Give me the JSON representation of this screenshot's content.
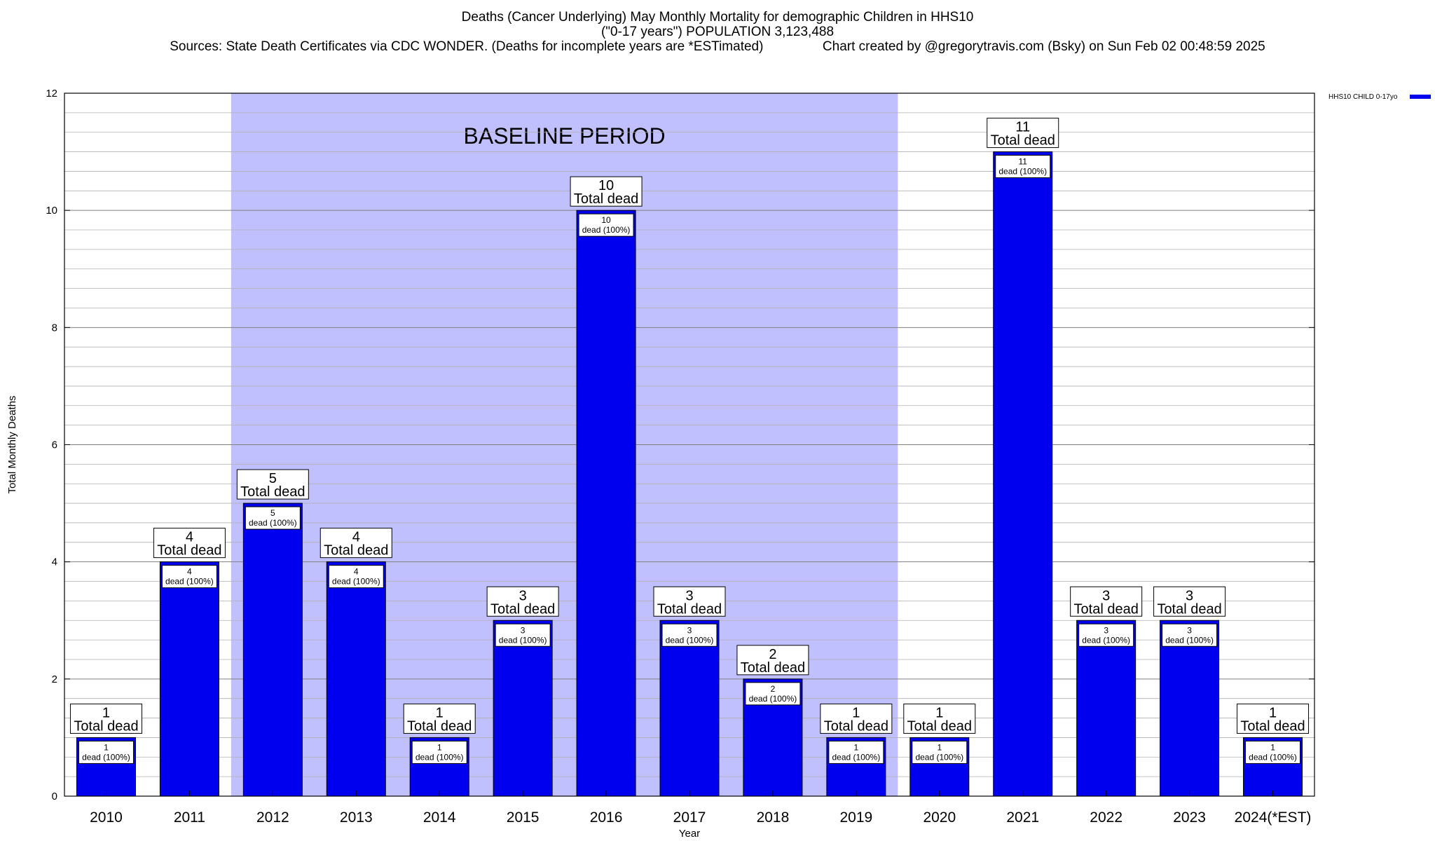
{
  "titles": {
    "line1": "Deaths (Cancer Underlying) May Monthly Mortality for demographic Children in HHS10",
    "line2": "(\"0-17 years\") POPULATION 3,123,488",
    "line3_left": "Sources: State Death Certificates via CDC WONDER. (Deaths for incomplete years are *ESTimated)",
    "line3_right": "Chart created by @gregorytravis.com (Bsky) on Sun Feb 02 00:48:59 2025"
  },
  "colors": {
    "bar": "#0000ee",
    "baseline_band": "#c0c0ff",
    "grid": "#b0b0b0"
  },
  "chart_data": {
    "type": "bar",
    "xlabel": "Year",
    "ylabel": "Total Monthly Deaths",
    "ylim": [
      0,
      12
    ],
    "yticks": [
      "0",
      "2",
      "4",
      "6",
      "8",
      "10",
      "12"
    ],
    "categories": [
      "2010",
      "2011",
      "2012",
      "2013",
      "2014",
      "2015",
      "2016",
      "2017",
      "2018",
      "2019",
      "2020",
      "2021",
      "2022",
      "2023",
      "2024(*EST)"
    ],
    "series": [
      {
        "name": "HHS10 CHILD 0-17yo",
        "values": [
          1,
          4,
          5,
          4,
          1,
          3,
          10,
          3,
          2,
          1,
          1,
          11,
          3,
          3,
          1
        ]
      }
    ],
    "label_total_text": "Total dead",
    "label_inner_suffix": "dead (100%)",
    "baseline": {
      "label": "BASELINE PERIOD",
      "from": "2012",
      "to": "2019"
    },
    "grid": true,
    "legend_position": "top-right"
  }
}
